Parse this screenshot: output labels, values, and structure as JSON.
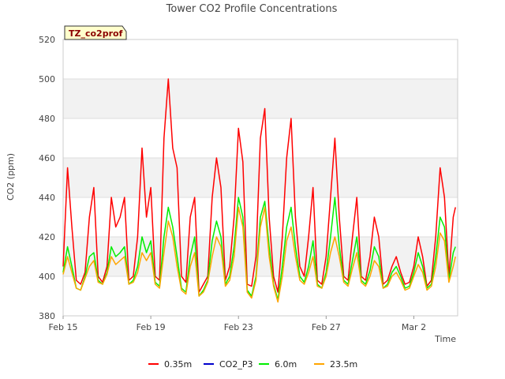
{
  "chart_data": {
    "type": "line",
    "title": "Tower CO2 Profile Concentrations",
    "xlabel": "Time",
    "ylabel": "CO2 (ppm)",
    "ylim": [
      380,
      520
    ],
    "yticks": [
      380,
      400,
      420,
      440,
      460,
      480,
      500,
      520
    ],
    "xlim_days": [
      0,
      18
    ],
    "xticks": [
      {
        "day": 0,
        "label": "Feb 15"
      },
      {
        "day": 4,
        "label": "Feb 19"
      },
      {
        "day": 8,
        "label": "Feb 23"
      },
      {
        "day": 12,
        "label": "Feb 27"
      },
      {
        "day": 16,
        "label": "Mar 2"
      }
    ],
    "tag": "TZ_co2prof",
    "series": [
      {
        "name": "0.35m",
        "color": "#ff0000",
        "points": [
          [
            0.0,
            405
          ],
          [
            0.2,
            455
          ],
          [
            0.4,
            425
          ],
          [
            0.6,
            398
          ],
          [
            0.8,
            396
          ],
          [
            1.0,
            402
          ],
          [
            1.2,
            430
          ],
          [
            1.4,
            445
          ],
          [
            1.6,
            400
          ],
          [
            1.8,
            397
          ],
          [
            2.0,
            405
          ],
          [
            2.2,
            440
          ],
          [
            2.4,
            425
          ],
          [
            2.6,
            430
          ],
          [
            2.8,
            440
          ],
          [
            3.0,
            398
          ],
          [
            3.2,
            400
          ],
          [
            3.4,
            420
          ],
          [
            3.6,
            465
          ],
          [
            3.8,
            430
          ],
          [
            4.0,
            445
          ],
          [
            4.2,
            400
          ],
          [
            4.4,
            398
          ],
          [
            4.6,
            470
          ],
          [
            4.8,
            500
          ],
          [
            5.0,
            465
          ],
          [
            5.2,
            455
          ],
          [
            5.4,
            400
          ],
          [
            5.6,
            397
          ],
          [
            5.8,
            430
          ],
          [
            6.0,
            440
          ],
          [
            6.2,
            392
          ],
          [
            6.4,
            396
          ],
          [
            6.6,
            400
          ],
          [
            6.8,
            440
          ],
          [
            7.0,
            460
          ],
          [
            7.2,
            445
          ],
          [
            7.4,
            398
          ],
          [
            7.6,
            405
          ],
          [
            7.8,
            430
          ],
          [
            8.0,
            475
          ],
          [
            8.2,
            458
          ],
          [
            8.4,
            396
          ],
          [
            8.6,
            395
          ],
          [
            8.8,
            410
          ],
          [
            9.0,
            470
          ],
          [
            9.2,
            485
          ],
          [
            9.4,
            430
          ],
          [
            9.6,
            400
          ],
          [
            9.8,
            392
          ],
          [
            10.0,
            420
          ],
          [
            10.2,
            460
          ],
          [
            10.4,
            480
          ],
          [
            10.6,
            430
          ],
          [
            10.8,
            405
          ],
          [
            11.0,
            400
          ],
          [
            11.2,
            420
          ],
          [
            11.4,
            445
          ],
          [
            11.6,
            398
          ],
          [
            11.8,
            396
          ],
          [
            12.0,
            410
          ],
          [
            12.2,
            440
          ],
          [
            12.4,
            470
          ],
          [
            12.6,
            430
          ],
          [
            12.8,
            400
          ],
          [
            13.0,
            398
          ],
          [
            13.2,
            420
          ],
          [
            13.4,
            440
          ],
          [
            13.6,
            400
          ],
          [
            13.8,
            398
          ],
          [
            14.0,
            410
          ],
          [
            14.2,
            430
          ],
          [
            14.4,
            420
          ],
          [
            14.6,
            396
          ],
          [
            14.8,
            398
          ],
          [
            15.0,
            405
          ],
          [
            15.2,
            410
          ],
          [
            15.4,
            402
          ],
          [
            15.6,
            396
          ],
          [
            15.8,
            397
          ],
          [
            16.0,
            405
          ],
          [
            16.2,
            420
          ],
          [
            16.4,
            410
          ],
          [
            16.6,
            395
          ],
          [
            16.8,
            398
          ],
          [
            17.0,
            420
          ],
          [
            17.2,
            455
          ],
          [
            17.4,
            440
          ],
          [
            17.6,
            400
          ],
          [
            17.8,
            430
          ],
          [
            17.9,
            435
          ]
        ]
      },
      {
        "name": "CO2_P3",
        "color": "#0000cc",
        "points": []
      },
      {
        "name": "6.0m",
        "color": "#00ee00",
        "points": [
          [
            0.0,
            402
          ],
          [
            0.2,
            415
          ],
          [
            0.4,
            405
          ],
          [
            0.6,
            394
          ],
          [
            0.8,
            393
          ],
          [
            1.0,
            400
          ],
          [
            1.2,
            410
          ],
          [
            1.4,
            412
          ],
          [
            1.6,
            398
          ],
          [
            1.8,
            396
          ],
          [
            2.0,
            402
          ],
          [
            2.2,
            415
          ],
          [
            2.4,
            410
          ],
          [
            2.6,
            412
          ],
          [
            2.8,
            415
          ],
          [
            3.0,
            396
          ],
          [
            3.2,
            398
          ],
          [
            3.4,
            405
          ],
          [
            3.6,
            420
          ],
          [
            3.8,
            412
          ],
          [
            4.0,
            418
          ],
          [
            4.2,
            397
          ],
          [
            4.4,
            395
          ],
          [
            4.6,
            420
          ],
          [
            4.8,
            435
          ],
          [
            5.0,
            425
          ],
          [
            5.2,
            410
          ],
          [
            5.4,
            394
          ],
          [
            5.6,
            392
          ],
          [
            5.8,
            410
          ],
          [
            6.0,
            420
          ],
          [
            6.2,
            390
          ],
          [
            6.4,
            393
          ],
          [
            6.6,
            398
          ],
          [
            6.8,
            418
          ],
          [
            7.0,
            428
          ],
          [
            7.2,
            420
          ],
          [
            7.4,
            396
          ],
          [
            7.6,
            400
          ],
          [
            7.8,
            415
          ],
          [
            8.0,
            440
          ],
          [
            8.2,
            430
          ],
          [
            8.4,
            393
          ],
          [
            8.6,
            390
          ],
          [
            8.8,
            400
          ],
          [
            9.0,
            430
          ],
          [
            9.2,
            438
          ],
          [
            9.4,
            415
          ],
          [
            9.6,
            396
          ],
          [
            9.8,
            388
          ],
          [
            10.0,
            405
          ],
          [
            10.2,
            425
          ],
          [
            10.4,
            435
          ],
          [
            10.6,
            415
          ],
          [
            10.8,
            400
          ],
          [
            11.0,
            397
          ],
          [
            11.2,
            405
          ],
          [
            11.4,
            418
          ],
          [
            11.6,
            396
          ],
          [
            11.8,
            394
          ],
          [
            12.0,
            402
          ],
          [
            12.2,
            420
          ],
          [
            12.4,
            440
          ],
          [
            12.6,
            415
          ],
          [
            12.8,
            398
          ],
          [
            13.0,
            396
          ],
          [
            13.2,
            408
          ],
          [
            13.4,
            420
          ],
          [
            13.6,
            398
          ],
          [
            13.8,
            396
          ],
          [
            14.0,
            403
          ],
          [
            14.2,
            415
          ],
          [
            14.4,
            410
          ],
          [
            14.6,
            394
          ],
          [
            14.8,
            396
          ],
          [
            15.0,
            402
          ],
          [
            15.2,
            405
          ],
          [
            15.4,
            400
          ],
          [
            15.6,
            394
          ],
          [
            15.8,
            395
          ],
          [
            16.0,
            402
          ],
          [
            16.2,
            412
          ],
          [
            16.4,
            405
          ],
          [
            16.6,
            394
          ],
          [
            16.8,
            396
          ],
          [
            17.0,
            410
          ],
          [
            17.2,
            430
          ],
          [
            17.4,
            425
          ],
          [
            17.6,
            398
          ],
          [
            17.8,
            412
          ],
          [
            17.9,
            415
          ]
        ]
      },
      {
        "name": "23.5m",
        "color": "#ffa500",
        "points": [
          [
            0.0,
            401
          ],
          [
            0.2,
            410
          ],
          [
            0.4,
            402
          ],
          [
            0.6,
            394
          ],
          [
            0.8,
            393
          ],
          [
            1.0,
            399
          ],
          [
            1.2,
            405
          ],
          [
            1.4,
            408
          ],
          [
            1.6,
            397
          ],
          [
            1.8,
            396
          ],
          [
            2.0,
            401
          ],
          [
            2.2,
            410
          ],
          [
            2.4,
            406
          ],
          [
            2.6,
            408
          ],
          [
            2.8,
            410
          ],
          [
            3.0,
            396
          ],
          [
            3.2,
            397
          ],
          [
            3.4,
            402
          ],
          [
            3.6,
            412
          ],
          [
            3.8,
            408
          ],
          [
            4.0,
            412
          ],
          [
            4.2,
            396
          ],
          [
            4.4,
            394
          ],
          [
            4.6,
            412
          ],
          [
            4.8,
            428
          ],
          [
            5.0,
            420
          ],
          [
            5.2,
            405
          ],
          [
            5.4,
            393
          ],
          [
            5.6,
            391
          ],
          [
            5.8,
            405
          ],
          [
            6.0,
            412
          ],
          [
            6.2,
            390
          ],
          [
            6.4,
            392
          ],
          [
            6.6,
            397
          ],
          [
            6.8,
            410
          ],
          [
            7.0,
            420
          ],
          [
            7.2,
            415
          ],
          [
            7.4,
            395
          ],
          [
            7.6,
            398
          ],
          [
            7.8,
            410
          ],
          [
            8.0,
            435
          ],
          [
            8.2,
            425
          ],
          [
            8.4,
            392
          ],
          [
            8.6,
            389
          ],
          [
            8.8,
            398
          ],
          [
            9.0,
            425
          ],
          [
            9.2,
            435
          ],
          [
            9.4,
            410
          ],
          [
            9.6,
            395
          ],
          [
            9.8,
            387
          ],
          [
            10.0,
            400
          ],
          [
            10.2,
            418
          ],
          [
            10.4,
            425
          ],
          [
            10.6,
            410
          ],
          [
            10.8,
            398
          ],
          [
            11.0,
            396
          ],
          [
            11.2,
            402
          ],
          [
            11.4,
            410
          ],
          [
            11.6,
            395
          ],
          [
            11.8,
            394
          ],
          [
            12.0,
            400
          ],
          [
            12.2,
            412
          ],
          [
            12.4,
            420
          ],
          [
            12.6,
            410
          ],
          [
            12.8,
            397
          ],
          [
            13.0,
            395
          ],
          [
            13.2,
            404
          ],
          [
            13.4,
            412
          ],
          [
            13.6,
            397
          ],
          [
            13.8,
            395
          ],
          [
            14.0,
            400
          ],
          [
            14.2,
            408
          ],
          [
            14.4,
            405
          ],
          [
            14.6,
            394
          ],
          [
            14.8,
            395
          ],
          [
            15.0,
            400
          ],
          [
            15.2,
            402
          ],
          [
            15.4,
            398
          ],
          [
            15.6,
            393
          ],
          [
            15.8,
            394
          ],
          [
            16.0,
            400
          ],
          [
            16.2,
            406
          ],
          [
            16.4,
            402
          ],
          [
            16.6,
            393
          ],
          [
            16.8,
            395
          ],
          [
            17.0,
            405
          ],
          [
            17.2,
            422
          ],
          [
            17.4,
            418
          ],
          [
            17.6,
            397
          ],
          [
            17.8,
            405
          ],
          [
            17.9,
            410
          ]
        ]
      }
    ]
  }
}
